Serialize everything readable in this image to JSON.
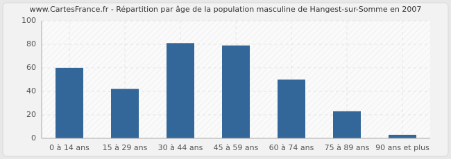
{
  "chart_data": {
    "type": "bar",
    "title": "www.CartesFrance.fr - Répartition par âge de la population masculine de Hangest-sur-Somme en 2007",
    "categories": [
      "0 à 14 ans",
      "15 à 29 ans",
      "30 à 44 ans",
      "45 à 59 ans",
      "60 à 74 ans",
      "75 à 89 ans",
      "90 ans et plus"
    ],
    "values": [
      60,
      42,
      81,
      79,
      50,
      23,
      3
    ],
    "color": "#336699",
    "ylim": [
      0,
      100
    ],
    "yticks": [
      0,
      20,
      40,
      60,
      80,
      100
    ],
    "grid": true
  }
}
